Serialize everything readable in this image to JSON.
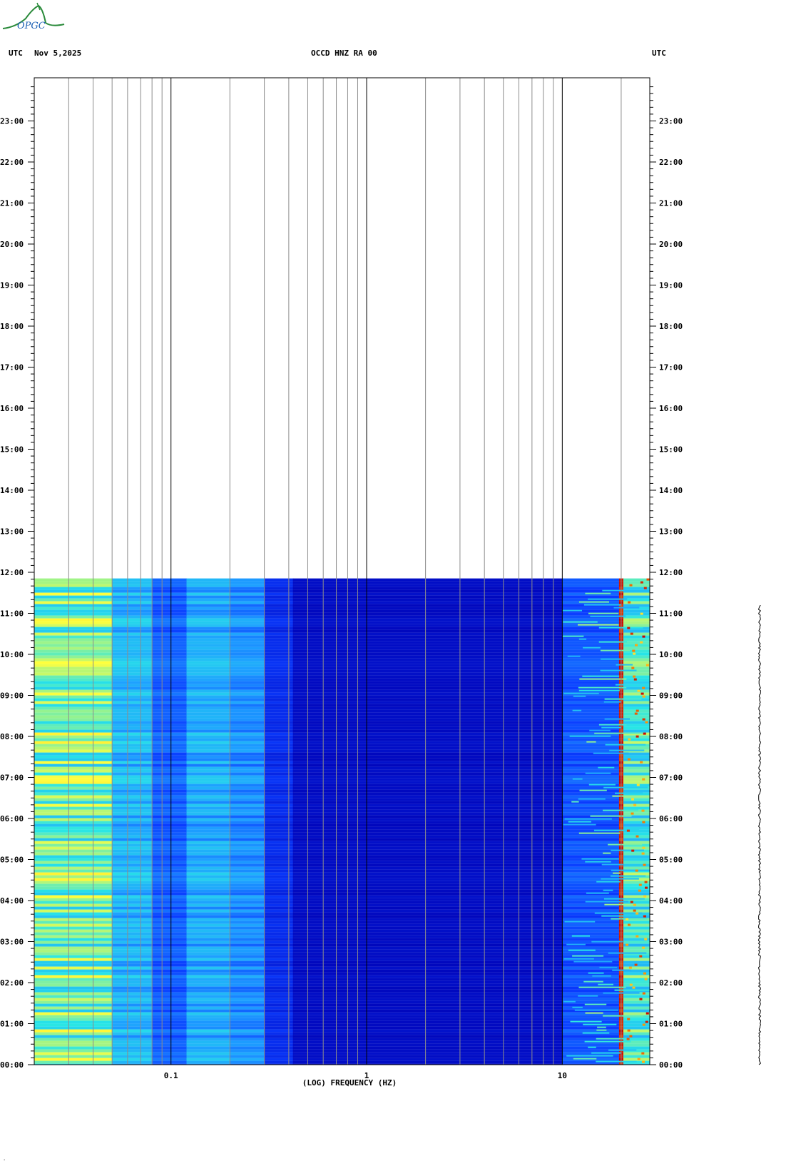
{
  "header": {
    "left_tz": "UTC",
    "date": "Nov 5,2025",
    "station": "OCCD HNZ RA 00",
    "right_tz": "UTC"
  },
  "logo": {
    "text": "OPGC",
    "color": "#2a8a3a",
    "text_color": "#1a5fb4"
  },
  "chart_data": {
    "type": "heatmap",
    "title": "OCCD HNZ RA 00",
    "xlabel": "(LOG) FREQUENCY (HZ)",
    "ylabel": "",
    "x_scale": "log",
    "xlim": [
      0.02,
      28
    ],
    "ylim_hours": [
      0,
      24
    ],
    "x_major_ticks": [
      {
        "value": 0.1,
        "label": "0.1"
      },
      {
        "value": 1,
        "label": "1"
      },
      {
        "value": 10,
        "label": "10"
      }
    ],
    "x_minor_grid": [
      0.03,
      0.04,
      0.05,
      0.06,
      0.07,
      0.08,
      0.09,
      0.2,
      0.3,
      0.4,
      0.5,
      0.6,
      0.7,
      0.8,
      0.9,
      2,
      3,
      4,
      5,
      6,
      7,
      8,
      9,
      20
    ],
    "y_ticks": [
      {
        "hour": 0,
        "label": "00:00"
      },
      {
        "hour": 1,
        "label": "01:00"
      },
      {
        "hour": 2,
        "label": "02:00"
      },
      {
        "hour": 3,
        "label": "03:00"
      },
      {
        "hour": 4,
        "label": "04:00"
      },
      {
        "hour": 5,
        "label": "05:00"
      },
      {
        "hour": 6,
        "label": "06:00"
      },
      {
        "hour": 7,
        "label": "07:00"
      },
      {
        "hour": 8,
        "label": "08:00"
      },
      {
        "hour": 9,
        "label": "09:00"
      },
      {
        "hour": 10,
        "label": "10:00"
      },
      {
        "hour": 11,
        "label": "11:00"
      },
      {
        "hour": 12,
        "label": "12:00"
      },
      {
        "hour": 13,
        "label": "13:00"
      },
      {
        "hour": 14,
        "label": "14:00"
      },
      {
        "hour": 15,
        "label": "15:00"
      },
      {
        "hour": 16,
        "label": "16:00"
      },
      {
        "hour": 17,
        "label": "17:00"
      },
      {
        "hour": 18,
        "label": "18:00"
      },
      {
        "hour": 19,
        "label": "19:00"
      },
      {
        "hour": 20,
        "label": "20:00"
      },
      {
        "hour": 21,
        "label": "21:00"
      },
      {
        "hour": 22,
        "label": "22:00"
      },
      {
        "hour": 23,
        "label": "23:00"
      }
    ],
    "data_end_hour": 11.85,
    "spectral_bands": [
      {
        "f_from": 0.02,
        "f_to": 0.05,
        "level": 0.55
      },
      {
        "f_from": 0.05,
        "f_to": 0.08,
        "level": 0.38
      },
      {
        "f_from": 0.08,
        "f_to": 0.12,
        "level": 0.22
      },
      {
        "f_from": 0.12,
        "f_to": 0.2,
        "level": 0.36
      },
      {
        "f_from": 0.2,
        "f_to": 0.3,
        "level": 0.3
      },
      {
        "f_from": 0.3,
        "f_to": 0.42,
        "level": 0.12
      },
      {
        "f_from": 0.42,
        "f_to": 10,
        "level": 0.02
      },
      {
        "f_from": 10,
        "f_to": 19.5,
        "level": 0.2
      },
      {
        "f_from": 19.5,
        "f_to": 20.5,
        "level": 1.0
      },
      {
        "f_from": 20.5,
        "f_to": 28,
        "level": 0.5
      }
    ],
    "colormap": [
      "#0000b4",
      "#0a3cff",
      "#1ea0ff",
      "#28e6e6",
      "#ffff3c",
      "#ff8c00",
      "#c80000"
    ],
    "grid": true
  }
}
